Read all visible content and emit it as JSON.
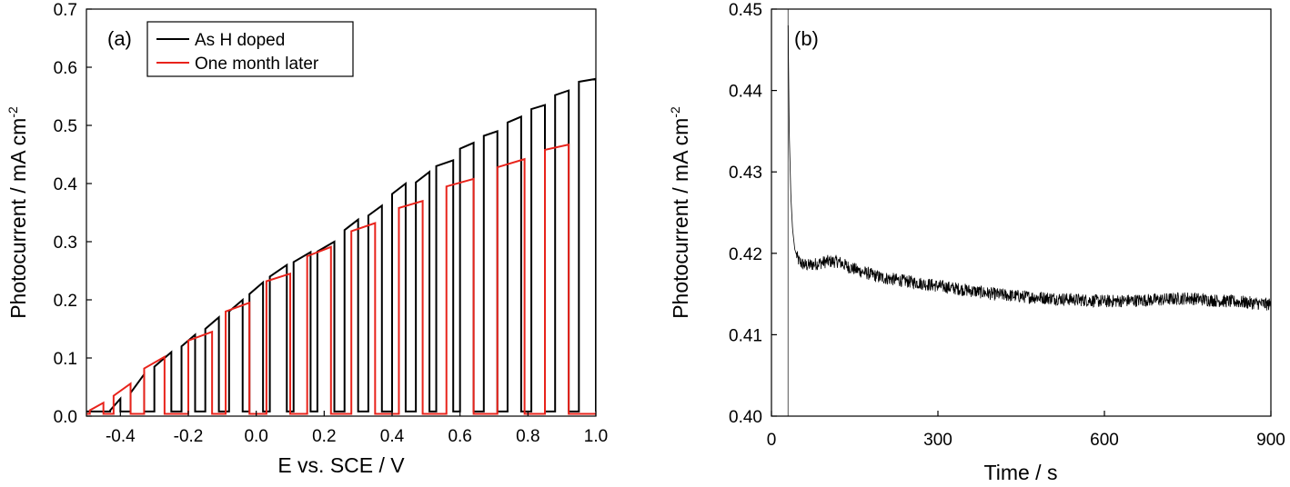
{
  "chart_data": [
    {
      "type": "line",
      "panel_label": "(a)",
      "xlabel": "E vs. SCE / V",
      "ylabel": "Photocurrent / mA cm",
      "ylabel_sup": "-2",
      "xlim": [
        -0.5,
        1.0
      ],
      "ylim": [
        0.0,
        0.7
      ],
      "xticks": [
        -0.4,
        -0.2,
        0.0,
        0.2,
        0.4,
        0.6,
        0.8,
        1.0
      ],
      "xtick_labels": [
        "-0.4",
        "-0.2",
        "0.0",
        "0.2",
        "0.4",
        "0.6",
        "0.8",
        "1.0"
      ],
      "yticks": [
        0.0,
        0.1,
        0.2,
        0.3,
        0.4,
        0.5,
        0.6,
        0.7
      ],
      "ytick_labels": [
        "0.0",
        "0.1",
        "0.2",
        "0.3",
        "0.4",
        "0.5",
        "0.6",
        "0.7"
      ],
      "legend_position": "top-left",
      "series": [
        {
          "name": "As H doped",
          "color": "#000000",
          "dark_current": 0.008,
          "pulses": [
            {
              "x_on": -0.43,
              "x_off": -0.4,
              "y_on": 0.01,
              "y_off": 0.03
            },
            {
              "x_on": -0.37,
              "x_off": -0.33,
              "y_on": 0.04,
              "y_off": 0.072
            },
            {
              "x_on": -0.3,
              "x_off": -0.25,
              "y_on": 0.085,
              "y_off": 0.11
            },
            {
              "x_on": -0.22,
              "x_off": -0.18,
              "y_on": 0.12,
              "y_off": 0.14
            },
            {
              "x_on": -0.15,
              "x_off": -0.11,
              "y_on": 0.15,
              "y_off": 0.17
            },
            {
              "x_on": -0.08,
              "x_off": -0.04,
              "y_on": 0.18,
              "y_off": 0.2
            },
            {
              "x_on": -0.02,
              "x_off": 0.02,
              "y_on": 0.21,
              "y_off": 0.23
            },
            {
              "x_on": 0.04,
              "x_off": 0.09,
              "y_on": 0.24,
              "y_off": 0.26
            },
            {
              "x_on": 0.11,
              "x_off": 0.16,
              "y_on": 0.265,
              "y_off": 0.282
            },
            {
              "x_on": 0.18,
              "x_off": 0.23,
              "y_on": 0.283,
              "y_off": 0.3
            },
            {
              "x_on": 0.26,
              "x_off": 0.3,
              "y_on": 0.32,
              "y_off": 0.338
            },
            {
              "x_on": 0.33,
              "x_off": 0.37,
              "y_on": 0.345,
              "y_off": 0.362
            },
            {
              "x_on": 0.4,
              "x_off": 0.44,
              "y_on": 0.382,
              "y_off": 0.4
            },
            {
              "x_on": 0.47,
              "x_off": 0.51,
              "y_on": 0.402,
              "y_off": 0.42
            },
            {
              "x_on": 0.53,
              "x_off": 0.58,
              "y_on": 0.43,
              "y_off": 0.44
            },
            {
              "x_on": 0.6,
              "x_off": 0.64,
              "y_on": 0.46,
              "y_off": 0.47
            },
            {
              "x_on": 0.67,
              "x_off": 0.71,
              "y_on": 0.482,
              "y_off": 0.49
            },
            {
              "x_on": 0.74,
              "x_off": 0.78,
              "y_on": 0.505,
              "y_off": 0.515
            },
            {
              "x_on": 0.81,
              "x_off": 0.85,
              "y_on": 0.528,
              "y_off": 0.535
            },
            {
              "x_on": 0.88,
              "x_off": 0.92,
              "y_on": 0.552,
              "y_off": 0.56
            },
            {
              "x_on": 0.95,
              "x_off": 1.0,
              "y_on": 0.575,
              "y_off": 0.58
            }
          ]
        },
        {
          "name": "One month later",
          "color": "#e8231b",
          "dark_current": 0.004,
          "pulses": [
            {
              "x_on": -0.49,
              "x_off": -0.45,
              "y_on": 0.01,
              "y_off": 0.023
            },
            {
              "x_on": -0.42,
              "x_off": -0.37,
              "y_on": 0.035,
              "y_off": 0.056
            },
            {
              "x_on": -0.33,
              "x_off": -0.27,
              "y_on": 0.082,
              "y_off": 0.102
            },
            {
              "x_on": -0.2,
              "x_off": -0.13,
              "y_on": 0.13,
              "y_off": 0.145
            },
            {
              "x_on": -0.09,
              "x_off": -0.02,
              "y_on": 0.18,
              "y_off": 0.195
            },
            {
              "x_on": 0.03,
              "x_off": 0.1,
              "y_on": 0.232,
              "y_off": 0.245
            },
            {
              "x_on": 0.15,
              "x_off": 0.22,
              "y_on": 0.275,
              "y_off": 0.291
            },
            {
              "x_on": 0.28,
              "x_off": 0.35,
              "y_on": 0.318,
              "y_off": 0.332
            },
            {
              "x_on": 0.42,
              "x_off": 0.49,
              "y_on": 0.358,
              "y_off": 0.37
            },
            {
              "x_on": 0.56,
              "x_off": 0.64,
              "y_on": 0.395,
              "y_off": 0.408
            },
            {
              "x_on": 0.71,
              "x_off": 0.79,
              "y_on": 0.428,
              "y_off": 0.442
            },
            {
              "x_on": 0.85,
              "x_off": 0.92,
              "y_on": 0.458,
              "y_off": 0.467
            }
          ]
        }
      ]
    },
    {
      "type": "line",
      "panel_label": "(b)",
      "xlabel": "Time / s",
      "ylabel": "Photocurrent / mA cm",
      "ylabel_sup": "-2",
      "xlim": [
        0,
        900
      ],
      "ylim": [
        0.4,
        0.45
      ],
      "xticks": [
        0,
        300,
        600,
        900
      ],
      "xtick_labels": [
        "0",
        "300",
        "600",
        "900"
      ],
      "yticks": [
        0.4,
        0.41,
        0.42,
        0.43,
        0.44,
        0.45
      ],
      "ytick_labels": [
        "0.40",
        "0.41",
        "0.42",
        "0.43",
        "0.44",
        "0.45"
      ],
      "series": [
        {
          "color": "#000000",
          "light_on_time": 30,
          "noise_amplitude": 0.0008,
          "x": [
            30,
            32,
            35,
            38,
            42,
            48,
            55,
            65,
            80,
            100,
            120,
            140,
            160,
            200,
            250,
            300,
            350,
            400,
            450,
            500,
            550,
            600,
            650,
            700,
            750,
            800,
            850,
            900
          ],
          "y": [
            0.448,
            0.435,
            0.427,
            0.423,
            0.4205,
            0.4192,
            0.4187,
            0.4185,
            0.4187,
            0.419,
            0.419,
            0.4183,
            0.4178,
            0.417,
            0.4165,
            0.416,
            0.4155,
            0.415,
            0.4147,
            0.4145,
            0.4143,
            0.4141,
            0.4142,
            0.4143,
            0.4145,
            0.4142,
            0.414,
            0.4137
          ]
        }
      ]
    }
  ]
}
